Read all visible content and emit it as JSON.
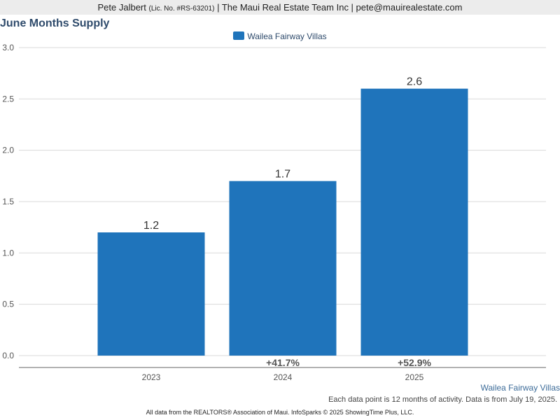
{
  "header": {
    "agent_name": "Pete Jalbert",
    "license": "(Lic. No. #RS-63201)",
    "rest": "| The Maui Real Estate Team Inc | pete@mauirealestate.com"
  },
  "colors": {
    "bar": "#1f74bb",
    "title": "#2e4a6b"
  },
  "chart_data": {
    "type": "bar",
    "title": "June Months Supply",
    "categories": [
      "2023",
      "2024",
      "2025"
    ],
    "series": [
      {
        "name": "Wailea Fairway Villas",
        "values": [
          1.2,
          1.7,
          2.6
        ],
        "labels": [
          "1.2",
          "1.7",
          "2.6"
        ]
      }
    ],
    "changes": [
      "",
      "+41.7%",
      "+52.9%"
    ],
    "ylim": [
      0,
      3
    ],
    "yticks": [
      "0.0",
      "0.5",
      "1.0",
      "1.5",
      "2.0",
      "2.5",
      "3.0"
    ],
    "grid": true,
    "legend": "top-center"
  },
  "geo_label": "Wailea Fairway Villas",
  "note": "Each data point is 12 months of activity. Data is from July 19, 2025.",
  "footer": "All data from the REALTORS® Association of Maui. InfoSparks © 2025 ShowingTime Plus, LLC."
}
